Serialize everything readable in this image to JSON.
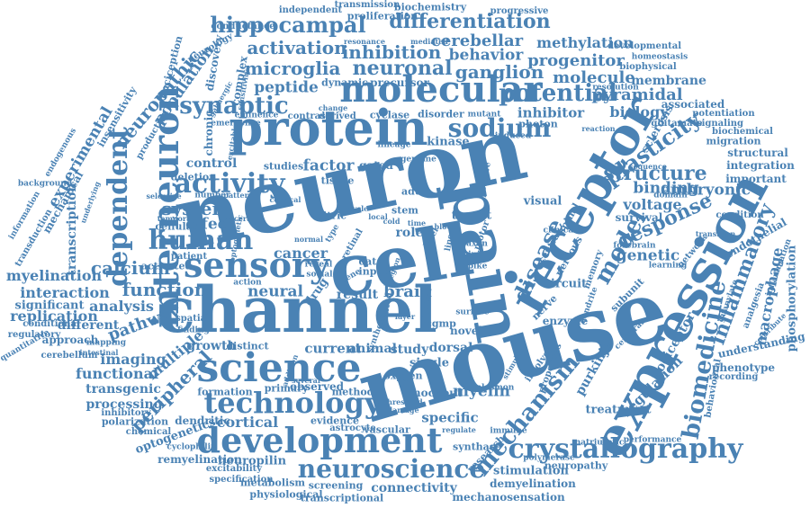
{
  "color": "#4a82b4",
  "words": [
    {
      "text": "neuron"
    },
    {
      "text": "mouse"
    },
    {
      "text": "channel"
    },
    {
      "text": "cell"
    },
    {
      "text": "pain"
    },
    {
      "text": "protein"
    },
    {
      "text": "expression"
    },
    {
      "text": "receptor"
    },
    {
      "text": "science"
    },
    {
      "text": "development"
    },
    {
      "text": "molecular"
    },
    {
      "text": "sensory"
    },
    {
      "text": "interneuron"
    },
    {
      "text": "technology"
    },
    {
      "text": "crystallography"
    },
    {
      "text": "neuroscience"
    },
    {
      "text": "mechanism"
    },
    {
      "text": "human"
    },
    {
      "text": "activity"
    },
    {
      "text": "sodium"
    },
    {
      "text": "potential"
    },
    {
      "text": "disease"
    },
    {
      "text": "model"
    },
    {
      "text": "biomedicine"
    },
    {
      "text": "dependent"
    },
    {
      "text": "synaptic"
    },
    {
      "text": "hippocampal"
    },
    {
      "text": "differentiation"
    },
    {
      "text": "microglia"
    },
    {
      "text": "neuronal"
    },
    {
      "text": "ganglion"
    },
    {
      "text": "activation"
    },
    {
      "text": "inhibition"
    },
    {
      "text": "cerebellar"
    },
    {
      "text": "behavior"
    },
    {
      "text": "methylation"
    },
    {
      "text": "progenitor"
    },
    {
      "text": "molecule"
    },
    {
      "text": "pyramidal"
    },
    {
      "text": "biology"
    },
    {
      "text": "inhibitor"
    },
    {
      "text": "plasticity"
    },
    {
      "text": "structure"
    },
    {
      "text": "response"
    },
    {
      "text": "binding"
    },
    {
      "text": "embryonic"
    },
    {
      "text": "voltage"
    },
    {
      "text": "genetic"
    },
    {
      "text": "inflammatory"
    },
    {
      "text": "macrophage"
    },
    {
      "text": "regulation"
    },
    {
      "text": "nociceptor"
    },
    {
      "text": "purkinje"
    },
    {
      "text": "myelin"
    },
    {
      "text": "calcium"
    },
    {
      "text": "function"
    },
    {
      "text": "system"
    },
    {
      "text": "effect"
    },
    {
      "text": "factor"
    },
    {
      "text": "control"
    },
    {
      "text": "peptide"
    },
    {
      "text": "neuropathic"
    },
    {
      "text": "experimental"
    },
    {
      "text": "transcription"
    },
    {
      "text": "myelination"
    },
    {
      "text": "interaction"
    },
    {
      "text": "replication"
    },
    {
      "text": "analysis"
    },
    {
      "text": "pathway"
    },
    {
      "text": "imaging"
    },
    {
      "text": "functional"
    },
    {
      "text": "peripheral"
    },
    {
      "text": "multiple"
    },
    {
      "text": "transgenic"
    },
    {
      "text": "processing"
    },
    {
      "text": "cortical"
    },
    {
      "text": "dendritic"
    },
    {
      "text": "optogenetics"
    },
    {
      "text": "neuropilin"
    },
    {
      "text": "remyelination"
    },
    {
      "text": "connectivity"
    },
    {
      "text": "stimulation"
    },
    {
      "text": "demyelination"
    },
    {
      "text": "mechanosensation"
    },
    {
      "text": "neuropathy"
    },
    {
      "text": "specific"
    },
    {
      "text": "cancer"
    },
    {
      "text": "neural"
    },
    {
      "text": "brain"
    },
    {
      "text": "result"
    },
    {
      "text": "role"
    },
    {
      "text": "kinase"
    },
    {
      "text": "current"
    },
    {
      "text": "animal"
    },
    {
      "text": "study"
    },
    {
      "text": "dorsal"
    },
    {
      "text": "growth"
    },
    {
      "text": "different"
    },
    {
      "text": "significant"
    },
    {
      "text": "approach"
    },
    {
      "text": "cerebellum"
    },
    {
      "text": "endothelial"
    },
    {
      "text": "phenotype"
    },
    {
      "text": "understanding"
    },
    {
      "text": "phosphorylation"
    },
    {
      "text": "integration"
    },
    {
      "text": "membrane"
    },
    {
      "text": "treatment"
    },
    {
      "text": "circuit"
    },
    {
      "text": "enzyme"
    },
    {
      "text": "novel"
    },
    {
      "text": "single"
    },
    {
      "text": "target"
    },
    {
      "text": "visual"
    },
    {
      "text": "nervous"
    },
    {
      "text": "survival"
    },
    {
      "text": "subunit"
    },
    {
      "text": "nerve"
    },
    {
      "text": "stem"
    },
    {
      "text": "data"
    },
    {
      "text": "input"
    },
    {
      "text": "adult"
    },
    {
      "text": "cgmp"
    },
    {
      "text": "knockout"
    },
    {
      "text": "evidence"
    },
    {
      "text": "observed"
    },
    {
      "text": "method"
    },
    {
      "text": "formation"
    },
    {
      "text": "primary"
    },
    {
      "text": "distinct"
    },
    {
      "text": "mapping"
    },
    {
      "text": "nitric"
    },
    {
      "text": "cyclase"
    },
    {
      "text": "disorder"
    },
    {
      "text": "photon"
    },
    {
      "text": "synthase"
    },
    {
      "text": "screening"
    },
    {
      "text": "transcriptional"
    },
    {
      "text": "physiological"
    },
    {
      "text": "metabolism"
    },
    {
      "text": "specification"
    },
    {
      "text": "excitability"
    },
    {
      "text": "cyclophilin"
    },
    {
      "text": "polarization"
    },
    {
      "text": "inhibitory"
    },
    {
      "text": "chemical"
    },
    {
      "text": "activated"
    },
    {
      "text": "patient"
    },
    {
      "text": "cellular"
    },
    {
      "text": "deletion"
    },
    {
      "text": "studies"
    },
    {
      "text": "gated"
    },
    {
      "text": "tissue"
    },
    {
      "text": "precursor"
    },
    {
      "text": "dynamic"
    },
    {
      "text": "contrast"
    },
    {
      "text": "derived"
    },
    {
      "text": "chronic"
    },
    {
      "text": "population"
    },
    {
      "text": "nociception"
    },
    {
      "text": "discovery"
    },
    {
      "text": "complex"
    },
    {
      "text": "neurology"
    },
    {
      "text": "insensitivity"
    },
    {
      "text": "mechanical"
    },
    {
      "text": "transduction"
    },
    {
      "text": "information"
    },
    {
      "text": "background"
    },
    {
      "text": "endogenous"
    },
    {
      "text": "production"
    },
    {
      "text": "independent"
    },
    {
      "text": "transmission"
    },
    {
      "text": "biochemistry"
    },
    {
      "text": "proliferation"
    },
    {
      "text": "progressive"
    },
    {
      "text": "conductance"
    },
    {
      "text": "developmental"
    },
    {
      "text": "homeostasis"
    },
    {
      "text": "biophysical"
    },
    {
      "text": "resolution"
    },
    {
      "text": "associated"
    },
    {
      "text": "glutamate"
    },
    {
      "text": "potentiation"
    },
    {
      "text": "signaling"
    },
    {
      "text": "biochemical"
    },
    {
      "text": "migration"
    },
    {
      "text": "structural"
    },
    {
      "text": "important"
    },
    {
      "text": "condition"
    },
    {
      "text": "sclerosis"
    },
    {
      "text": "behavioural"
    },
    {
      "text": "recording"
    },
    {
      "text": "performance"
    },
    {
      "text": "network"
    },
    {
      "text": "analgesia"
    },
    {
      "text": "learning"
    },
    {
      "text": "spinal"
    },
    {
      "text": "memory"
    },
    {
      "text": "dendrite"
    },
    {
      "text": "forebrain"
    },
    {
      "text": "clinical"
    },
    {
      "text": "central"
    },
    {
      "text": "motor"
    },
    {
      "text": "injury"
    },
    {
      "text": "axon"
    },
    {
      "text": "spike"
    },
    {
      "text": "natriuretic"
    },
    {
      "text": "polymerase"
    },
    {
      "text": "research"
    },
    {
      "text": "involved"
    },
    {
      "text": "immune"
    },
    {
      "text": "plasmon"
    },
    {
      "text": "surface"
    },
    {
      "text": "optical"
    },
    {
      "text": "related"
    },
    {
      "text": "synthesis"
    },
    {
      "text": "oxygen"
    },
    {
      "text": "drug"
    },
    {
      "text": "astrocyte"
    },
    {
      "text": "vascular"
    },
    {
      "text": "conditional"
    },
    {
      "text": "regulatory"
    },
    {
      "text": "quantitative"
    },
    {
      "text": "intestinal"
    },
    {
      "text": "spatial"
    },
    {
      "text": "finding"
    },
    {
      "text": "retinal"
    },
    {
      "text": "level"
    },
    {
      "text": "normal"
    },
    {
      "text": "action"
    },
    {
      "text": "reveal"
    },
    {
      "text": "social"
    },
    {
      "text": "type"
    },
    {
      "text": "gene"
    },
    {
      "text": "line"
    },
    {
      "text": "emergence"
    },
    {
      "text": "eminence"
    },
    {
      "text": "change"
    },
    {
      "text": "mutant"
    },
    {
      "text": "induced"
    },
    {
      "text": "lineage"
    },
    {
      "text": "genome"
    },
    {
      "text": "positive"
    },
    {
      "text": "reaction"
    },
    {
      "text": "sequence"
    },
    {
      "text": "domain"
    },
    {
      "text": "transition"
    },
    {
      "text": "mediated"
    },
    {
      "text": "resonance"
    },
    {
      "text": "sensitivity"
    },
    {
      "text": "excitable"
    },
    {
      "text": "gabaergic"
    },
    {
      "text": "selective"
    },
    {
      "text": "underlying"
    },
    {
      "text": "temporal"
    },
    {
      "text": "pattern"
    },
    {
      "text": "visceral"
    },
    {
      "text": "optogenetic"
    },
    {
      "text": "cervical"
    },
    {
      "text": "number"
    },
    {
      "text": "local"
    },
    {
      "text": "cycle"
    },
    {
      "text": "cold"
    },
    {
      "text": "blood"
    },
    {
      "text": "time"
    },
    {
      "text": "stimulus"
    },
    {
      "text": "threshold"
    },
    {
      "text": "addition"
    },
    {
      "text": "several"
    },
    {
      "text": "damage"
    },
    {
      "text": "layer"
    },
    {
      "text": "region"
    },
    {
      "text": "properties"
    },
    {
      "text": "regulate"
    },
    {
      "text": "cerebral"
    },
    {
      "text": "inflammation"
    },
    {
      "text": "guanylate"
    },
    {
      "text": "contribute"
    }
  ]
}
